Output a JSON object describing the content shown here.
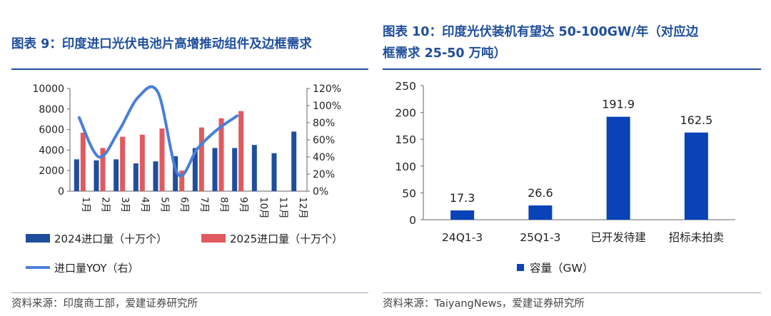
{
  "chart_data": [
    {
      "type": "bar",
      "title": "图表 9：印度进口光伏电池片高增推动组件及边框需求",
      "categories": [
        "1月",
        "2月",
        "3月",
        "4月",
        "5月",
        "6月",
        "7月",
        "8月",
        "9月",
        "10月",
        "11月",
        "12月"
      ],
      "series": [
        {
          "name": "2024进口量（十万个）",
          "type": "bar",
          "axis": "left",
          "color": "#1f4e9c",
          "values": [
            3100,
            3000,
            3100,
            2700,
            2900,
            3400,
            4200,
            4200,
            4200,
            4500,
            3700,
            5800
          ]
        },
        {
          "name": "2025进口量（十万个）",
          "type": "bar",
          "axis": "left",
          "color": "#e05a5f",
          "values": [
            5700,
            4200,
            5300,
            5500,
            6100,
            2000,
            6200,
            7100,
            7800,
            null,
            null,
            null
          ]
        },
        {
          "name": "进口量YOY（右）",
          "type": "line",
          "axis": "right",
          "color": "#4a7fd8",
          "values": [
            0.86,
            0.4,
            0.7,
            1.1,
            1.15,
            0.2,
            0.5,
            0.72,
            0.88,
            null,
            null,
            null
          ]
        }
      ],
      "y_left": {
        "min": 0,
        "max": 10000,
        "ticks": [
          0,
          2000,
          4000,
          6000,
          8000,
          10000
        ]
      },
      "y_right": {
        "min": 0,
        "max": 1.2,
        "ticks": [
          "0%",
          "20%",
          "40%",
          "60%",
          "80%",
          "100%",
          "120%"
        ]
      },
      "legend": [
        "2024进口量（十万个）",
        "2025进口量（十万个）",
        "进口量YOY（右）"
      ],
      "source": "资料来源：印度商工部，爱建证券研究所"
    },
    {
      "type": "bar",
      "title": "图表 10：印度光伏装机有望达 50-100GW/年（对应边框需求 25-50 万吨）",
      "title_lines": [
        "图表 10：印度光伏装机有望达 50-100GW/年（对应边",
        "框需求 25-50 万吨）"
      ],
      "categories": [
        "24Q1-3",
        "25Q1-3",
        "已开发待建",
        "招标未拍卖"
      ],
      "series": [
        {
          "name": "容量（GW）",
          "color": "#0a43b8",
          "values": [
            17.3,
            26.6,
            191.9,
            162.5
          ]
        }
      ],
      "data_labels": [
        "17.3",
        "26.6",
        "191.9",
        "162.5"
      ],
      "ylim": [
        0,
        250
      ],
      "yticks": [
        0,
        50,
        100,
        150,
        200,
        250
      ],
      "legend": [
        "容量（GW）"
      ],
      "source": "资料来源：TaiyangNews，爱建证券研究所"
    }
  ]
}
